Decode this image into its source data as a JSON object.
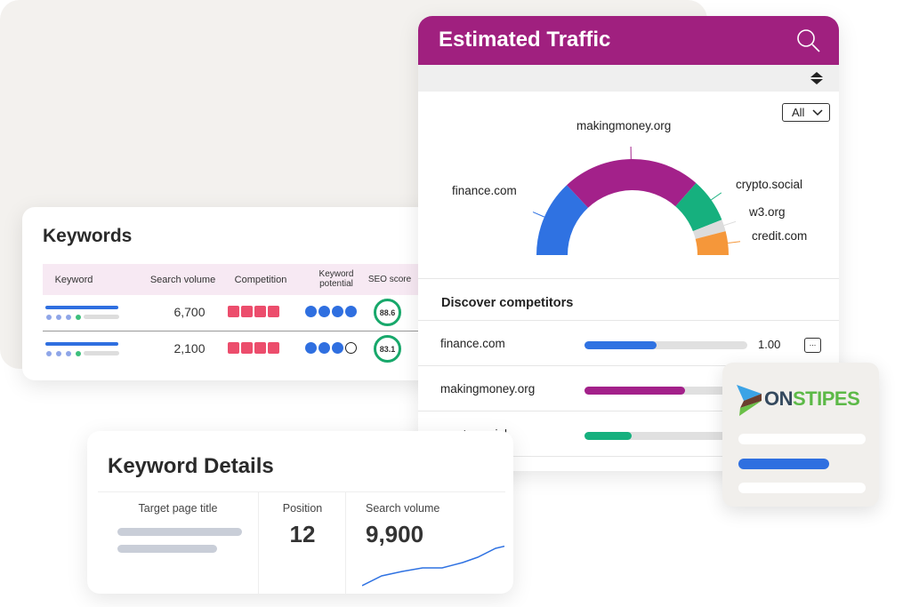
{
  "keywords": {
    "title": "Keywords",
    "columns": [
      "Keyword",
      "Search volume",
      "Competition",
      "Keyword potential",
      "SEO score"
    ],
    "rows": [
      {
        "search_volume": "6,700",
        "competition": 4,
        "potential": 4,
        "seo_score": "88.6"
      },
      {
        "search_volume": "2,100",
        "competition": 4,
        "potential": 3,
        "seo_score": "83.1"
      }
    ]
  },
  "traffic": {
    "title": "Estimated Traffic",
    "filter": "All",
    "icons": [
      "search-icon",
      "sort-icon",
      "chevron-down-icon",
      "more-icon"
    ],
    "chart_data": {
      "type": "pie",
      "style": "half-donut",
      "categories": [
        "finance.com",
        "makingmoney.org",
        "crypto.social",
        "w3.org",
        "credit.com"
      ],
      "values": [
        26,
        47,
        15,
        4,
        8
      ],
      "colors": [
        "#2f72e2",
        "#a3218a",
        "#16b07e",
        "#dcdcdc",
        "#f5973a"
      ]
    },
    "competitors_title": "Discover competitors",
    "competitors": [
      {
        "name": "finance.com",
        "value": "1.00",
        "fill": 0.44,
        "color": "#2f72e2"
      },
      {
        "name": "makingmoney.org",
        "fill": 0.62,
        "color": "#a3218a"
      },
      {
        "name": "crypto.social",
        "fill": 0.29,
        "color": "#16b07e"
      }
    ]
  },
  "brand": {
    "logo_text_a": "ON",
    "logo_text_b": "STIPES",
    "color_a": "#34495e",
    "color_b": "#5cb947"
  },
  "details": {
    "title": "Keyword Details",
    "target_label": "Target page title",
    "position_label": "Position",
    "position_value": "12",
    "volume_label": "Search volume",
    "volume_value": "9,900"
  }
}
